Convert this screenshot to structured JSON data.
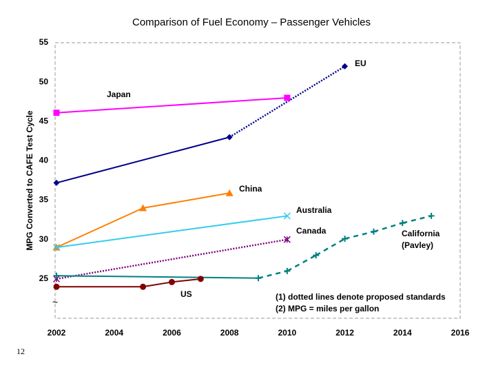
{
  "chart_data": {
    "type": "line",
    "title": "Comparison of Fuel Economy – Passenger Vehicles",
    "y_label": "MPG Converted to CAFE Test Cycle",
    "xlim": [
      2002,
      2016
    ],
    "xticks": [
      2002,
      2004,
      2006,
      2008,
      2010,
      2012,
      2014,
      2016
    ],
    "ylim": [
      20,
      55
    ],
    "yticks": [
      25,
      30,
      35,
      40,
      45,
      50,
      55
    ],
    "series": [
      {
        "name": "EU",
        "color": "#00008b",
        "marker": "diamond",
        "x": [
          2002,
          2008,
          2012
        ],
        "y": [
          37.2,
          43,
          52
        ],
        "segment_styles": [
          "solid",
          "dotted"
        ]
      },
      {
        "name": "Japan",
        "color": "#ff00ff",
        "marker": "square",
        "x": [
          2002,
          2010
        ],
        "y": [
          46.1,
          48
        ],
        "segment_styles": [
          "solid"
        ]
      },
      {
        "name": "China",
        "color": "#ff7f00",
        "marker": "triangle",
        "x": [
          2002,
          2005,
          2008
        ],
        "y": [
          29,
          34,
          35.9
        ],
        "segment_styles": [
          "solid",
          "solid"
        ]
      },
      {
        "name": "Australia",
        "color": "#33ccee",
        "marker": "x",
        "x": [
          2002,
          2010
        ],
        "y": [
          29,
          33
        ],
        "segment_styles": [
          "solid"
        ]
      },
      {
        "name": "Canada",
        "color": "#800080",
        "marker": "asterisk",
        "x": [
          2002,
          2010
        ],
        "y": [
          25,
          30
        ],
        "segment_styles": [
          "dotted"
        ]
      },
      {
        "name": [
          "California",
          "(Pavley)"
        ],
        "color": "#008080",
        "marker": "plus",
        "x": [
          2002,
          2009,
          2010,
          2011,
          2012,
          2013,
          2014,
          2015
        ],
        "y": [
          25.4,
          25.1,
          26,
          28,
          30.1,
          31,
          32.1,
          33
        ],
        "segment_styles": [
          "solid",
          "dashed",
          "dashed",
          "dashed",
          "dashed",
          "dashed",
          "dashed"
        ]
      },
      {
        "name": "US",
        "color": "#800000",
        "marker": "circle",
        "x": [
          2002,
          2005,
          2006,
          2007
        ],
        "y": [
          24,
          24,
          24.6,
          25
        ],
        "segment_styles": [
          "solid",
          "solid",
          "solid"
        ]
      }
    ],
    "notes": [
      "(1) dotted lines denote proposed standards",
      "(2) MPG = miles per gallon"
    ]
  },
  "page_number": "12"
}
